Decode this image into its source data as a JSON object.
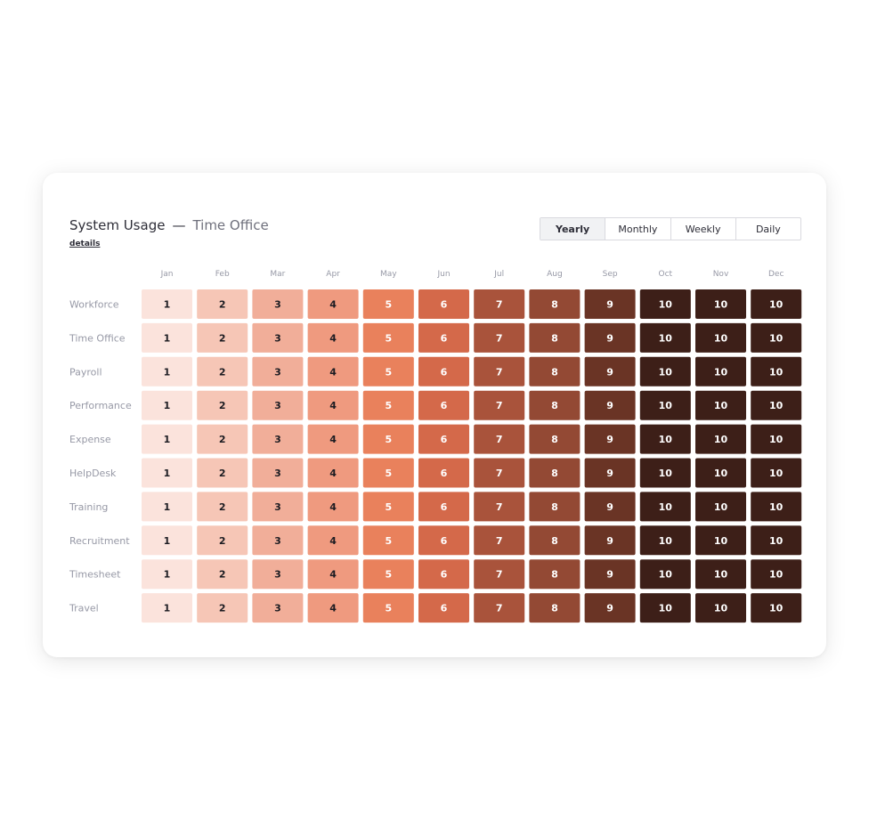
{
  "header": {
    "title": "System Usage",
    "dash": "—",
    "subtitle": "Time Office",
    "details_label": "details"
  },
  "period_selector": {
    "options": [
      "Yearly",
      "Monthly",
      "Weekly",
      "Daily"
    ],
    "selected": "Yearly"
  },
  "chart_data": {
    "type": "heatmap",
    "x_categories": [
      "Jan",
      "Feb",
      "Mar",
      "Apr",
      "May",
      "Jun",
      "Jul",
      "Aug",
      "Sep",
      "Oct",
      "Nov",
      "Dec"
    ],
    "y_categories": [
      "Workforce",
      "Time Office",
      "Payroll",
      "Performance",
      "Expense",
      "HelpDesk",
      "Training",
      "Recruitment",
      "Timesheet",
      "Travel"
    ],
    "values": [
      [
        1,
        2,
        3,
        4,
        5,
        6,
        7,
        8,
        9,
        10,
        10,
        10
      ],
      [
        1,
        2,
        3,
        4,
        5,
        6,
        7,
        8,
        9,
        10,
        10,
        10
      ],
      [
        1,
        2,
        3,
        4,
        5,
        6,
        7,
        8,
        9,
        10,
        10,
        10
      ],
      [
        1,
        2,
        3,
        4,
        5,
        6,
        7,
        8,
        9,
        10,
        10,
        10
      ],
      [
        1,
        2,
        3,
        4,
        5,
        6,
        7,
        8,
        9,
        10,
        10,
        10
      ],
      [
        1,
        2,
        3,
        4,
        5,
        6,
        7,
        8,
        9,
        10,
        10,
        10
      ],
      [
        1,
        2,
        3,
        4,
        5,
        6,
        7,
        8,
        9,
        10,
        10,
        10
      ],
      [
        1,
        2,
        3,
        4,
        5,
        6,
        7,
        8,
        9,
        10,
        10,
        10
      ],
      [
        1,
        2,
        3,
        4,
        5,
        6,
        7,
        8,
        9,
        10,
        10,
        10
      ],
      [
        1,
        2,
        3,
        4,
        5,
        6,
        7,
        8,
        9,
        10,
        10,
        10
      ]
    ],
    "color_scale": {
      "1": "#fbe3dc",
      "2": "#f6c6b6",
      "3": "#f1ae99",
      "4": "#ef9a7f",
      "5": "#e9815c",
      "6": "#d4694a",
      "7": "#a9533b",
      "8": "#934934",
      "9": "#6a3425",
      "10": "#3d1f18"
    },
    "text_color_light": "#ffffff",
    "text_color_dark": "#1c1c22",
    "label_color": "#9799a6"
  }
}
